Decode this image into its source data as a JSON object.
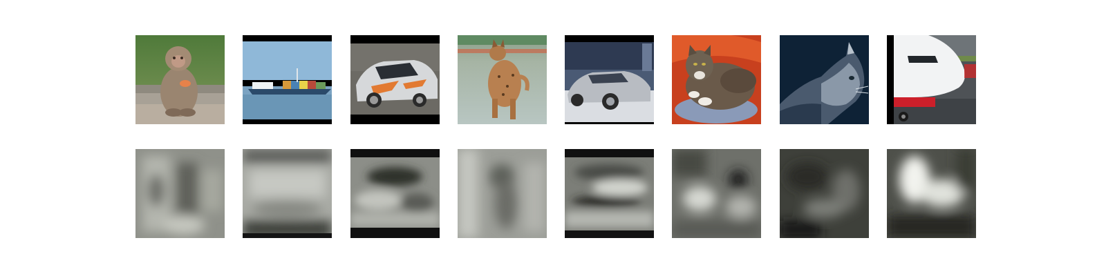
{
  "figure": {
    "rows": [
      {
        "kind": "input-images",
        "items": [
          {
            "subject": "monkey"
          },
          {
            "subject": "ship"
          },
          {
            "subject": "car"
          },
          {
            "subject": "wild-cat"
          },
          {
            "subject": "car"
          },
          {
            "subject": "cat"
          },
          {
            "subject": "cat"
          },
          {
            "subject": "airplane"
          }
        ]
      },
      {
        "kind": "reconstruction-maps",
        "items": [
          {
            "tone": "gray"
          },
          {
            "tone": "gray"
          },
          {
            "tone": "gray"
          },
          {
            "tone": "gray"
          },
          {
            "tone": "gray"
          },
          {
            "tone": "gray"
          },
          {
            "tone": "dark"
          },
          {
            "tone": "bright"
          }
        ]
      }
    ]
  },
  "colors": {
    "background": "#ffffff",
    "letterbox": "#000000"
  }
}
